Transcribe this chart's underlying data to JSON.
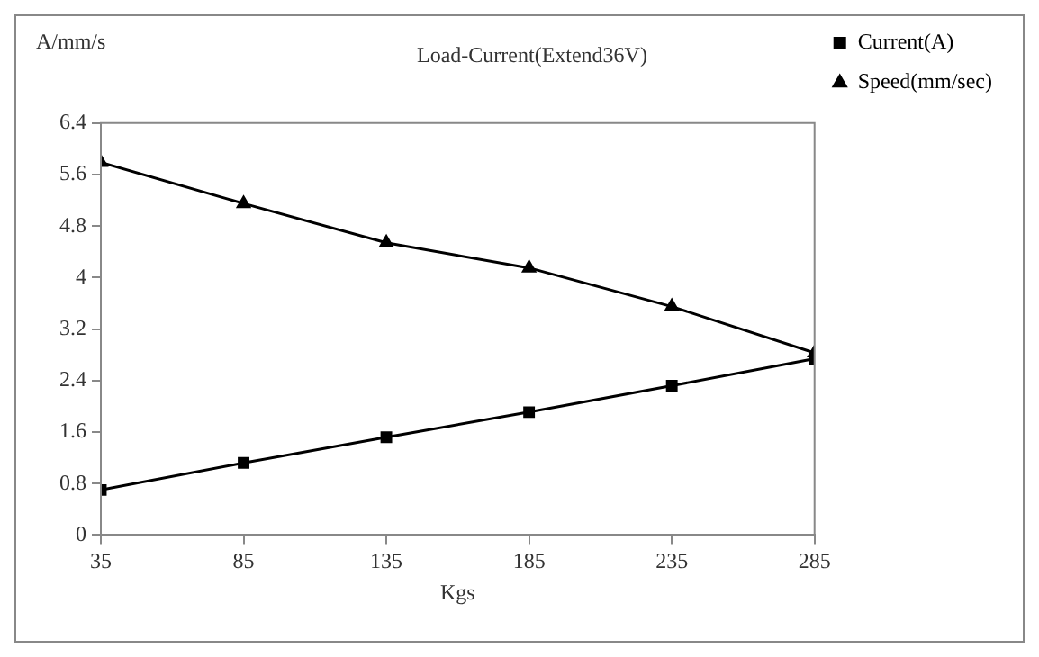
{
  "chart_data": {
    "type": "line",
    "title": "Load-Current(Extend36V)",
    "xlabel": "Kgs",
    "ylabel": "A/mm/s",
    "x": [
      35,
      85,
      135,
      185,
      235,
      285
    ],
    "series": [
      {
        "name": "Current(A)",
        "color": "#000000",
        "marker": "square",
        "values": [
          0.7,
          1.12,
          1.52,
          1.91,
          2.32,
          2.74
        ]
      },
      {
        "name": "Speed(mm/sec)",
        "color": "#000000",
        "marker": "triangle",
        "values": [
          5.79,
          5.15,
          4.54,
          4.15,
          3.55,
          2.83
        ]
      }
    ],
    "xlim": [
      35,
      285
    ],
    "xticks": [
      35,
      85,
      135,
      185,
      235,
      285
    ],
    "ylim": [
      0,
      6.4
    ],
    "yticks": [
      0,
      0.8,
      1.6,
      2.4,
      3.2,
      4,
      4.8,
      5.6,
      6.4
    ],
    "grid": false,
    "legend": "top right",
    "line_style": "solid"
  }
}
